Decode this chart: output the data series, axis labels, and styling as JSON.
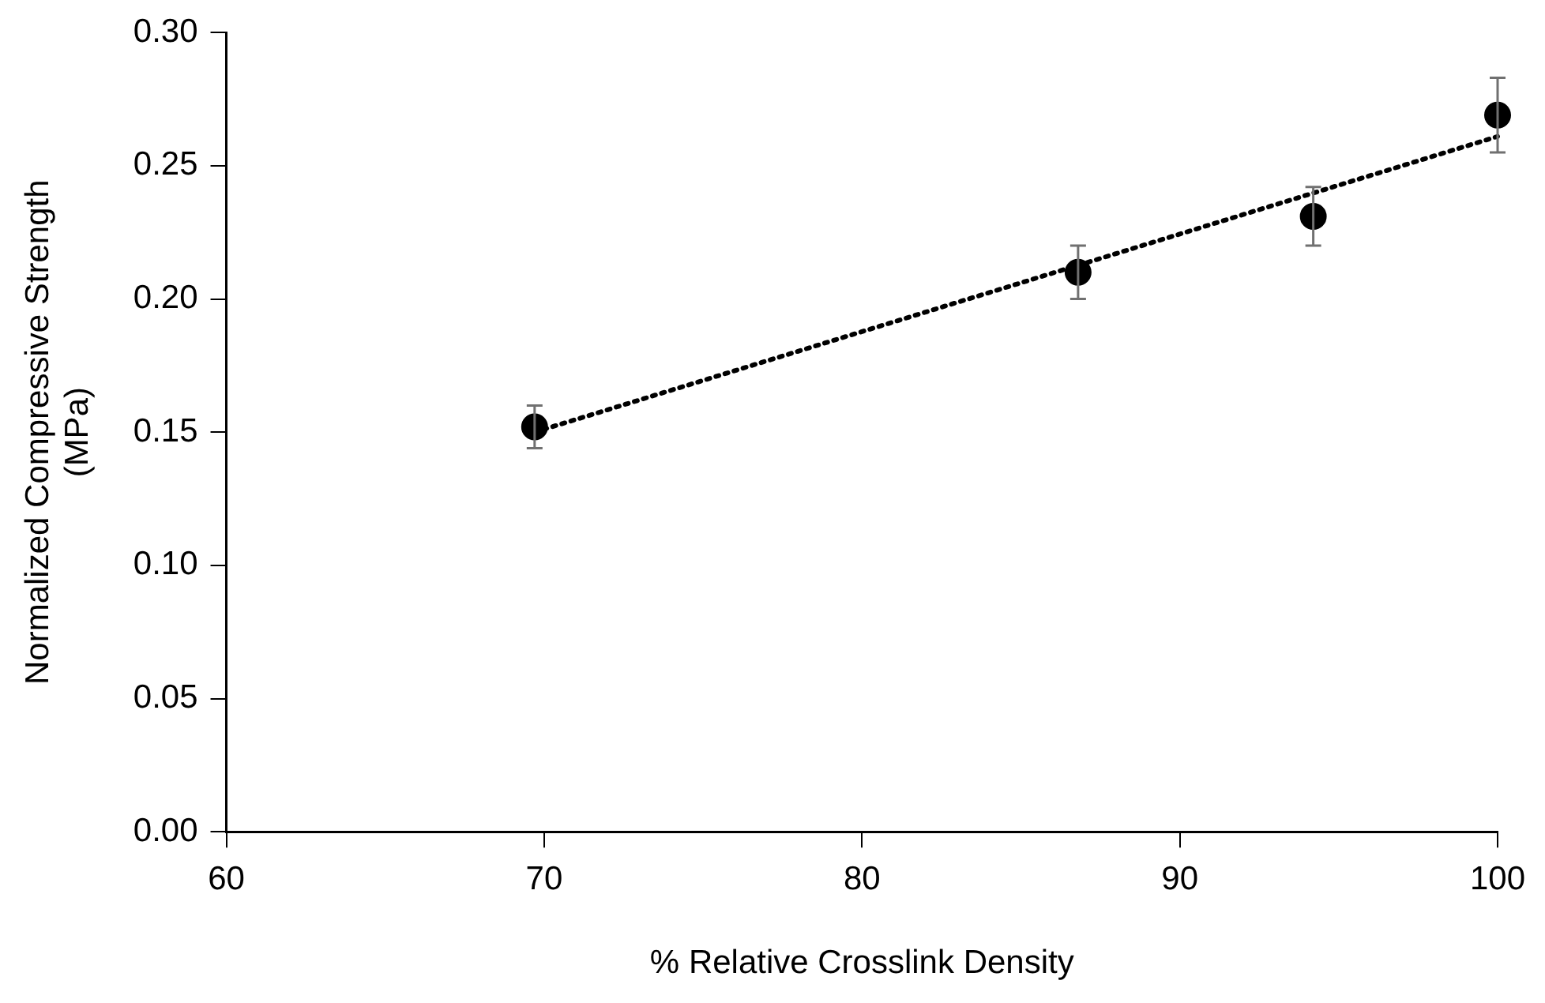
{
  "chart_data": {
    "type": "scatter",
    "xlabel": "% Relative Crosslink Density",
    "ylabel": "Normalized Compressive Strength (MPa)",
    "xlim": [
      60,
      100
    ],
    "xticks": [
      60,
      70,
      80,
      90,
      100
    ],
    "ylim": [
      0,
      0.3
    ],
    "yticks": [
      {
        "value": 0,
        "label": "0.00"
      },
      {
        "value": 0.05,
        "label": "0.05"
      },
      {
        "value": 0.1,
        "label": "0.10"
      },
      {
        "value": 0.15,
        "label": "0.15"
      },
      {
        "value": 0.2,
        "label": "0.20"
      },
      {
        "value": 0.25,
        "label": "0.25"
      },
      {
        "value": 0.3,
        "label": "0.30"
      }
    ],
    "grid": false,
    "legend": false,
    "series": [
      {
        "type": "scatter",
        "color": "#000000",
        "marker": "circle",
        "x": [
          69.7,
          86.8,
          94.2,
          100
        ],
        "values": [
          0.152,
          0.21,
          0.231,
          0.269
        ],
        "errors": [
          0.008,
          0.01,
          0.011,
          0.014
        ]
      },
      {
        "type": "line",
        "color": "#000000",
        "line_style": "dotted",
        "marker": "none",
        "x": [
          69.7,
          100
        ],
        "values": [
          0.15,
          0.261
        ]
      }
    ]
  }
}
